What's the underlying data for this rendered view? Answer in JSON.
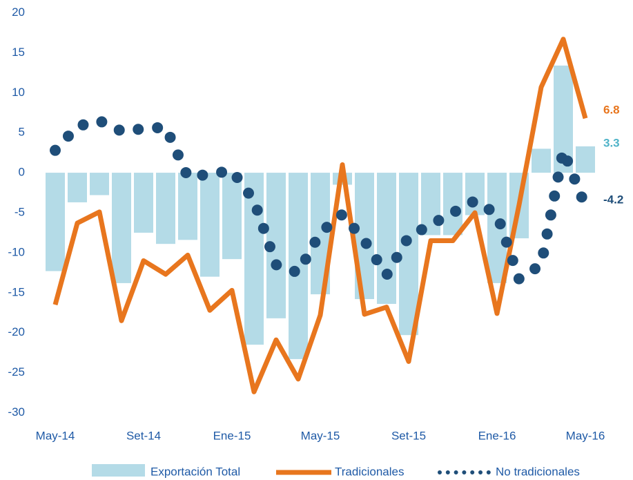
{
  "chart_data": {
    "type": "combo",
    "categories": [
      "May-14",
      null,
      null,
      null,
      "Set-14",
      null,
      null,
      null,
      "Ene-15",
      null,
      null,
      null,
      "May-15",
      null,
      null,
      null,
      "Set-15",
      null,
      null,
      null,
      "Ene-16",
      null,
      null,
      null,
      "May-16"
    ],
    "series": [
      {
        "name": "Exportación Total",
        "type": "bar",
        "color": "#b4dbe7",
        "values": [
          -12.3,
          -3.7,
          -2.8,
          -13.8,
          -7.5,
          -8.9,
          -8.4,
          -13,
          -10.8,
          -21.5,
          -18.2,
          -23.3,
          -15.2,
          -1.5,
          -15.8,
          -16.4,
          -20.3,
          -7.8,
          -7.8,
          -5.3,
          -13.8,
          -8.2,
          3,
          13.4,
          3.3
        ],
        "label_color": "#4fb3c8"
      },
      {
        "name": "Tradicionales",
        "type": "line",
        "color": "#e8761e",
        "values": [
          -16.5,
          -6.3,
          -4.9,
          -18.5,
          -11,
          -12.7,
          -10.3,
          -17.2,
          -14.7,
          -27.4,
          -20.9,
          -25.8,
          -17.8,
          1.0,
          -17.7,
          -16.8,
          -23.6,
          -8.5,
          -8.5,
          -5,
          -17.6,
          -4,
          10.7,
          16.7,
          6.8
        ],
        "label_color": "#e8761e"
      },
      {
        "name": "No tradicionales",
        "type": "line",
        "line_style": "dotted",
        "color": "#1f4e79",
        "values": [
          2.8,
          5.8,
          6.5,
          5.2,
          5.5,
          5.7,
          -0.5,
          -0.2,
          0.3,
          -3.5,
          -11.5,
          -12.5,
          -7.5,
          -5.2,
          -8.5,
          -12.8,
          -8,
          -6.5,
          -5,
          -3.5,
          -5.2,
          -13.3,
          -11.5,
          2.8,
          -4.2
        ],
        "label_color": "#1f4e79"
      }
    ],
    "ylim": [
      -30,
      20
    ],
    "yticks": [
      20,
      15,
      10,
      5,
      0,
      -5,
      -10,
      -15,
      -20,
      -25,
      -30
    ]
  }
}
